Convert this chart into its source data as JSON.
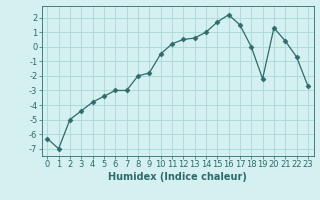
{
  "x": [
    0,
    1,
    2,
    3,
    4,
    5,
    6,
    7,
    8,
    9,
    10,
    11,
    12,
    13,
    14,
    15,
    16,
    17,
    18,
    19,
    20,
    21,
    22,
    23
  ],
  "y": [
    -6.3,
    -7.0,
    -5.0,
    -4.4,
    -3.8,
    -3.4,
    -3.0,
    -3.0,
    -2.0,
    -1.8,
    -0.5,
    0.2,
    0.5,
    0.6,
    1.0,
    1.7,
    2.2,
    1.5,
    0.0,
    -2.2,
    1.3,
    0.4,
    -0.7,
    -2.7
  ],
  "line_color": "#2e6b6b",
  "marker": "D",
  "marker_size": 2.5,
  "background_color": "#d4f0f0",
  "grid_color": "#a8d8d8",
  "xlabel": "Humidex (Indice chaleur)",
  "xlabel_fontsize": 7,
  "tick_fontsize": 6,
  "xlim": [
    -0.5,
    23.5
  ],
  "ylim": [
    -7.5,
    2.8
  ],
  "yticks": [
    -7,
    -6,
    -5,
    -4,
    -3,
    -2,
    -1,
    0,
    1,
    2
  ],
  "xticks": [
    0,
    1,
    2,
    3,
    4,
    5,
    6,
    7,
    8,
    9,
    10,
    11,
    12,
    13,
    14,
    15,
    16,
    17,
    18,
    19,
    20,
    21,
    22,
    23
  ]
}
